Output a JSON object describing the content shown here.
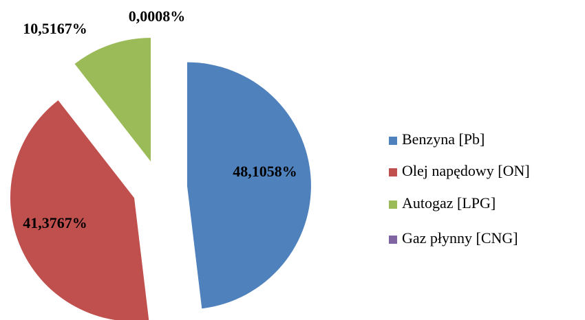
{
  "chart_data": {
    "type": "pie",
    "categories": [
      "Benzyna [Pb]",
      "Olej napędowy [ON]",
      "Autogaz [LPG]",
      "Gaz płynny [CNG]"
    ],
    "values": [
      48.1058,
      41.3767,
      10.5167,
      0.0008
    ],
    "value_labels": [
      "48,1058%",
      "41,3767%",
      "10,5167%",
      "0,0008%"
    ],
    "colors": [
      "#4f81bd",
      "#c0504d",
      "#9bbb59",
      "#8064a2"
    ],
    "legend": "right"
  }
}
